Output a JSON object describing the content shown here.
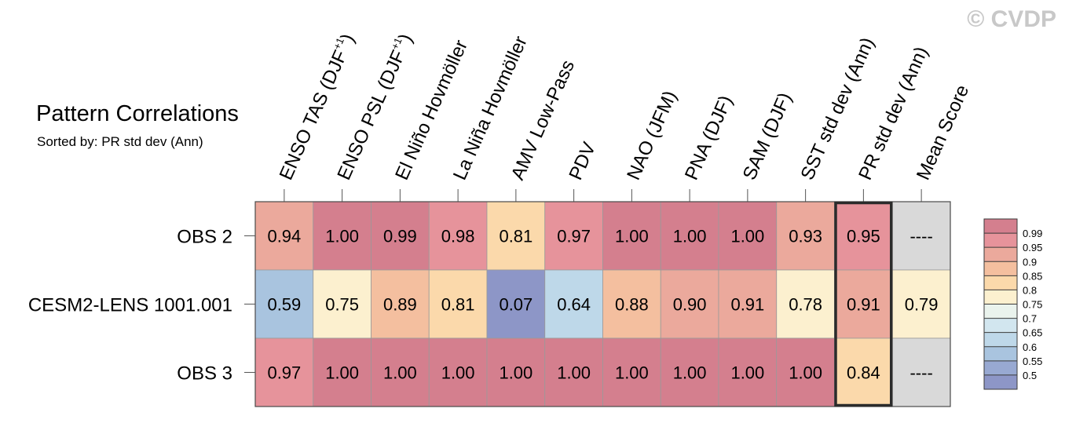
{
  "watermark": "© CVDP",
  "chart_data": {
    "type": "heatmap",
    "title": "Pattern Correlations",
    "subtitle": "Sorted by: PR std dev (Ann)",
    "columns": [
      {
        "text": "ENSO TAS (DJF",
        "sup": "+1",
        "tail": ")"
      },
      {
        "text": "ENSO PSL (DJF",
        "sup": "+1",
        "tail": ")"
      },
      {
        "text": "El Niño Hovmöller"
      },
      {
        "text": "La Niña Hovmöller"
      },
      {
        "text": "AMV Low-Pass"
      },
      {
        "text": "PDV"
      },
      {
        "text": "NAO (JFM)"
      },
      {
        "text": "PNA (DJF)"
      },
      {
        "text": "SAM (DJF)"
      },
      {
        "text": "SST std dev (Ann)"
      },
      {
        "text": "PR std dev (Ann)"
      },
      {
        "text": "Mean Score"
      }
    ],
    "rows": [
      "OBS 2",
      "CESM2-LENS 1001.001",
      "OBS 3"
    ],
    "values": [
      [
        "0.94",
        "1.00",
        "0.99",
        "0.98",
        "0.81",
        "0.97",
        "1.00",
        "1.00",
        "1.00",
        "0.93",
        "0.95",
        "----"
      ],
      [
        "0.59",
        "0.75",
        "0.89",
        "0.81",
        "0.07",
        "0.64",
        "0.88",
        "0.90",
        "0.91",
        "0.78",
        "0.91",
        "0.79"
      ],
      [
        "0.97",
        "1.00",
        "1.00",
        "1.00",
        "1.00",
        "1.00",
        "1.00",
        "1.00",
        "1.00",
        "1.00",
        "0.84",
        "----"
      ]
    ],
    "highlighted_column": "PR std dev (Ann)",
    "colorbar": {
      "labels": [
        "0.99",
        "0.95",
        "0.9",
        "0.85",
        "0.8",
        "0.75",
        "0.7",
        "0.65",
        "0.6",
        "0.55",
        "0.5"
      ],
      "thresholds": [
        0.99,
        0.95,
        0.9,
        0.85,
        0.8,
        0.75,
        0.7,
        0.65,
        0.6,
        0.55,
        0.5
      ],
      "colors": [
        "#d47f8e",
        "#e6939b",
        "#eba99c",
        "#f4bf9f",
        "#fbd9ab",
        "#fcf0cf",
        "#eaf3ed",
        "#d2e6ef",
        "#bed8e9",
        "#a9c4df",
        "#98a9d2",
        "#8d96c7"
      ]
    },
    "missing_color": "#d9d9d9"
  }
}
